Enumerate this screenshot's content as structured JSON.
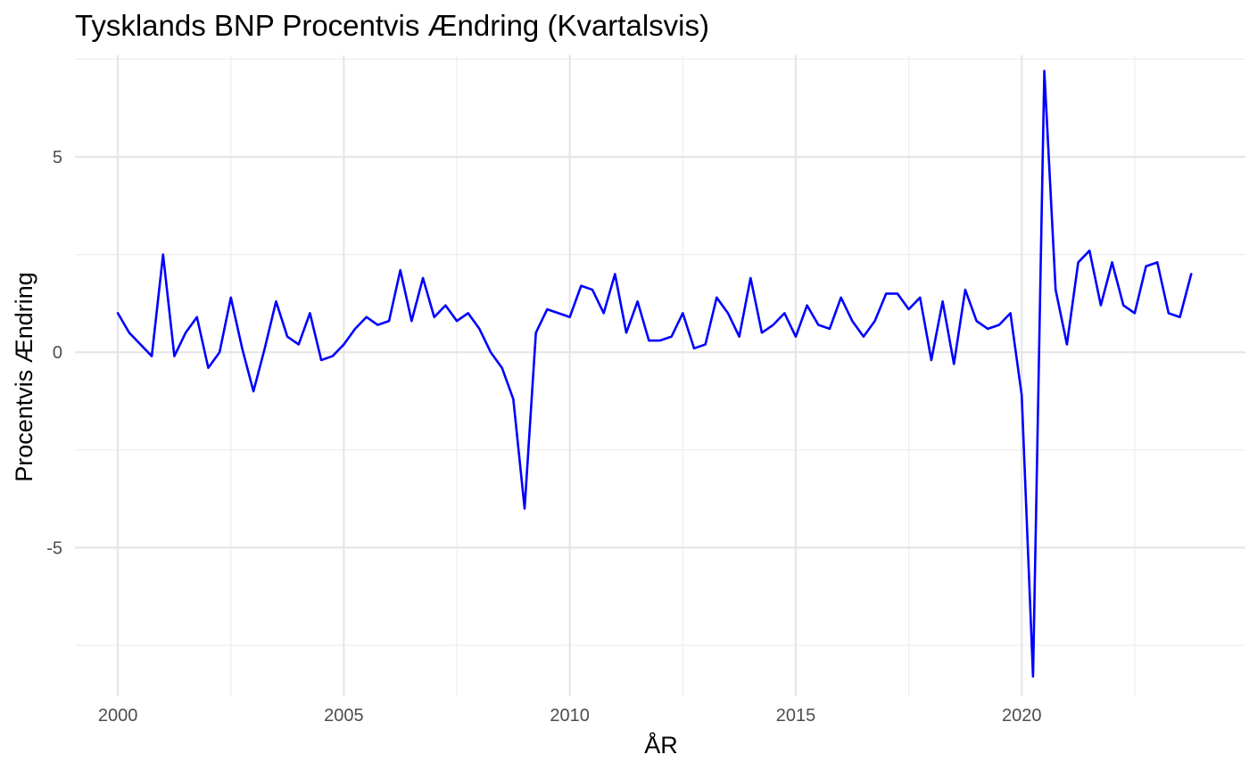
{
  "chart_data": {
    "type": "line",
    "title": "Tysklands BNP Procentvis Ændring (Kvartalsvis)",
    "xlabel": "ÅR",
    "ylabel": "Procentvis Ændring",
    "xlim": [
      1999.05,
      2024.95
    ],
    "ylim": [
      -8.8,
      7.6
    ],
    "x_ticks": [
      2000,
      2005,
      2010,
      2015,
      2020
    ],
    "x_tick_labels": [
      "2000",
      "2005",
      "2010",
      "2015",
      "2020"
    ],
    "x_minor_ticks": [
      2002.5,
      2007.5,
      2012.5,
      2017.5,
      2022.5
    ],
    "y_ticks": [
      -5,
      0,
      5
    ],
    "y_tick_labels": [
      "-5",
      "0",
      "5"
    ],
    "y_minor_ticks": [
      -7.5,
      -2.5,
      2.5,
      7.5
    ],
    "grid": true,
    "legend": "none",
    "line_color": "#0000ff",
    "series": [
      {
        "x": [
          2000.0,
          2000.25,
          2000.5,
          2000.75,
          2001.0,
          2001.25,
          2001.5,
          2001.75,
          2002.0,
          2002.25,
          2002.5,
          2002.75,
          2003.0,
          2003.25,
          2003.5,
          2003.75,
          2004.0,
          2004.25,
          2004.5,
          2004.75,
          2005.0,
          2005.25,
          2005.5,
          2005.75,
          2006.0,
          2006.25,
          2006.5,
          2006.75,
          2007.0,
          2007.25,
          2007.5,
          2007.75,
          2008.0,
          2008.25,
          2008.5,
          2008.75,
          2009.0,
          2009.25,
          2009.5,
          2009.75,
          2010.0,
          2010.25,
          2010.5,
          2010.75,
          2011.0,
          2011.25,
          2011.5,
          2011.75,
          2012.0,
          2012.25,
          2012.5,
          2012.75,
          2013.0,
          2013.25,
          2013.5,
          2013.75,
          2014.0,
          2014.25,
          2014.5,
          2014.75,
          2015.0,
          2015.25,
          2015.5,
          2015.75,
          2016.0,
          2016.25,
          2016.5,
          2016.75,
          2017.0,
          2017.25,
          2017.5,
          2017.75,
          2018.0,
          2018.25,
          2018.5,
          2018.75,
          2019.0,
          2019.25,
          2019.5,
          2019.75,
          2020.0,
          2020.25,
          2020.5,
          2020.75,
          2021.0,
          2021.25,
          2021.5,
          2021.75,
          2022.0,
          2022.25,
          2022.5,
          2022.75,
          2023.0,
          2023.25,
          2023.5,
          2023.75
        ],
        "values": [
          1.0,
          0.5,
          0.2,
          -0.1,
          2.5,
          -0.1,
          0.5,
          0.9,
          -0.4,
          0.0,
          1.4,
          0.1,
          -1.0,
          0.1,
          1.3,
          0.4,
          0.2,
          1.0,
          -0.2,
          -0.1,
          0.2,
          0.6,
          0.9,
          0.7,
          0.8,
          2.1,
          0.8,
          1.9,
          0.9,
          1.2,
          0.8,
          1.0,
          0.6,
          0.0,
          -0.4,
          -1.2,
          -4.0,
          0.5,
          1.1,
          1.0,
          0.9,
          1.7,
          1.6,
          1.0,
          2.0,
          0.5,
          1.3,
          0.3,
          0.3,
          0.4,
          1.0,
          0.1,
          0.2,
          1.4,
          1.0,
          0.4,
          1.9,
          0.5,
          0.7,
          1.0,
          0.4,
          1.2,
          0.7,
          0.6,
          1.4,
          0.8,
          0.4,
          0.8,
          1.5,
          1.5,
          1.1,
          1.4,
          -0.2,
          1.3,
          -0.3,
          1.6,
          0.8,
          0.6,
          0.7,
          1.0,
          -1.1,
          -8.3,
          7.2,
          1.6,
          0.2,
          2.3,
          2.6,
          1.2,
          2.3,
          1.2,
          1.0,
          2.2,
          2.3,
          1.0,
          0.9,
          2.0
        ]
      }
    ]
  }
}
